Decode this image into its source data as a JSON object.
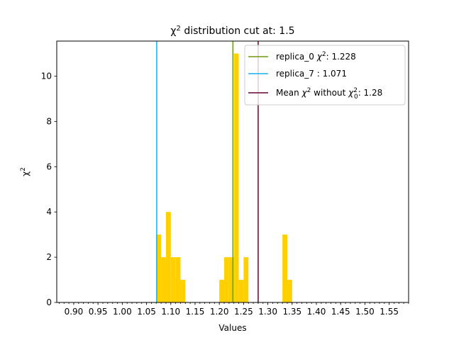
{
  "chart_data": {
    "type": "bar",
    "title_prefix": "χ",
    "title_sup": "2",
    "title_suffix": " distribution cut at: 1.5",
    "xlabel": "Values",
    "ylabel_base": "χ",
    "ylabel_sup": "2",
    "xlim": [
      0.865,
      1.59
    ],
    "ylim": [
      0,
      11.55
    ],
    "xticks": [
      0.9,
      0.95,
      1.0,
      1.05,
      1.1,
      1.15,
      1.2,
      1.25,
      1.3,
      1.35,
      1.4,
      1.45,
      1.5,
      1.55
    ],
    "xtick_labels": [
      "0.90",
      "0.95",
      "1.00",
      "1.05",
      "1.10",
      "1.15",
      "1.20",
      "1.25",
      "1.30",
      "1.35",
      "1.40",
      "1.45",
      "1.50",
      "1.55"
    ],
    "yticks": [
      0,
      2,
      4,
      6,
      8,
      10
    ],
    "ytick_labels": [
      "0",
      "2",
      "4",
      "6",
      "8",
      "10"
    ],
    "minor_xtick_step": 0.01,
    "bar_color": "#ffd000",
    "bin_width": 0.01,
    "bins": [
      {
        "x0": 1.07,
        "count": 3
      },
      {
        "x0": 1.08,
        "count": 2
      },
      {
        "x0": 1.09,
        "count": 4
      },
      {
        "x0": 1.1,
        "count": 2
      },
      {
        "x0": 1.11,
        "count": 2
      },
      {
        "x0": 1.12,
        "count": 1
      },
      {
        "x0": 1.2,
        "count": 1
      },
      {
        "x0": 1.21,
        "count": 2
      },
      {
        "x0": 1.22,
        "count": 2
      },
      {
        "x0": 1.23,
        "count": 11
      },
      {
        "x0": 1.24,
        "count": 1
      },
      {
        "x0": 1.25,
        "count": 2
      },
      {
        "x0": 1.33,
        "count": 3
      },
      {
        "x0": 1.34,
        "count": 1
      }
    ],
    "vlines": [
      {
        "name": "replica_0",
        "value": 1.228,
        "color": "#6b9a0b"
      },
      {
        "name": "replica_7",
        "value": 1.071,
        "color": "#13b0ef"
      },
      {
        "name": "mean",
        "value": 1.28,
        "color": "#6a0035"
      }
    ],
    "legend": {
      "placement": "top-right",
      "entries": [
        {
          "color": "#6b9a0b",
          "text": "replica_0   χ², 1.228",
          "parts": [
            "replica_0   ",
            "χ",
            "2",
            ": 1.228"
          ]
        },
        {
          "color": "#13b0ef",
          "text": "replica_7 : 1.071",
          "parts": [
            "replica_7 : 1.071"
          ]
        },
        {
          "color": "#6a0035",
          "text": "Mean χ² without χ₀²: 1.28",
          "parts": [
            "Mean ",
            "χ",
            "2",
            " without ",
            "χ",
            "2",
            "0",
            ": 1.28"
          ]
        }
      ]
    }
  }
}
